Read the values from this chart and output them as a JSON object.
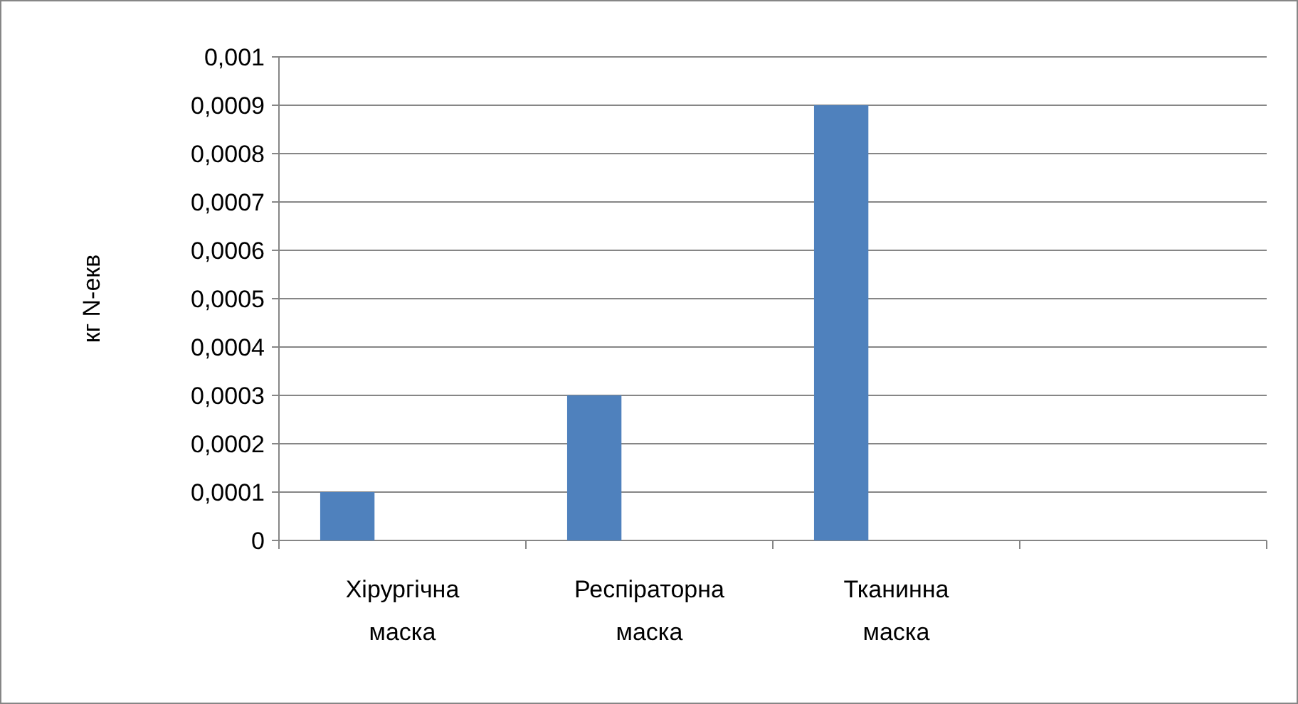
{
  "chart_data": {
    "type": "bar",
    "ylabel": "кг N-екв",
    "categories": [
      "Хірургічна маска",
      "Респіраторна маска",
      "Тканинна маска",
      null
    ],
    "values": [
      0.0001,
      0.0003,
      0.0009,
      null
    ],
    "color": "#4f81bd",
    "ylim": [
      0,
      0.001
    ],
    "yticks": [
      0,
      {
        "value": 0.0001,
        "label": "0,0001"
      },
      {
        "value": 0.0002,
        "label": "0,0002"
      },
      {
        "value": 0.0003,
        "label": "0,0003"
      },
      {
        "value": 0.0004,
        "label": "0,0004"
      },
      {
        "value": 0.0005,
        "label": "0,0005"
      },
      {
        "value": 0.0006,
        "label": "0,0006"
      },
      {
        "value": 0.0007,
        "label": "0,0007"
      },
      {
        "value": 0.0008,
        "label": "0,0008"
      },
      {
        "value": 0.0009,
        "label": "0,0009"
      },
      {
        "value": 0.001,
        "label": "0,001"
      }
    ],
    "grid": "y"
  }
}
